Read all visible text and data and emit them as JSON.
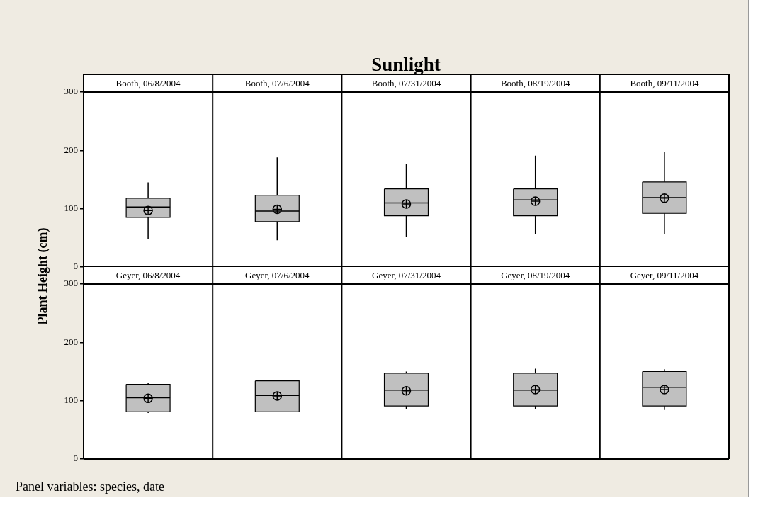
{
  "chart_data": [
    {
      "type": "box",
      "title": "Sunlight",
      "ylabel": "Plant Height (cm)",
      "categories": [
        "Booth, 06/8/2004",
        "Booth, 07/6/2004",
        "Booth, 07/31/2004",
        "Booth, 08/19/2004",
        "Booth, 09/11/2004"
      ],
      "ylim": [
        0,
        300
      ],
      "yticks": [
        0,
        100,
        200,
        300
      ],
      "series": [
        {
          "color": "#c0c0c0",
          "boxes": [
            {
              "low": 48,
              "q1": 85,
              "median": 103,
              "q3": 118,
              "high": 145,
              "mean": 97
            },
            {
              "low": 46,
              "q1": 78,
              "median": 96,
              "q3": 123,
              "high": 188,
              "mean": 99
            },
            {
              "low": 51,
              "q1": 88,
              "median": 110,
              "q3": 134,
              "high": 176,
              "mean": 108
            },
            {
              "low": 56,
              "q1": 88,
              "median": 115,
              "q3": 134,
              "high": 191,
              "mean": 113
            },
            {
              "low": 56,
              "q1": 92,
              "median": 119,
              "q3": 146,
              "high": 198,
              "mean": 118
            }
          ]
        }
      ]
    },
    {
      "type": "box",
      "annotations": [
        "Panel variables: species, date"
      ],
      "categories": [
        "Geyer, 06/8/2004",
        "Geyer, 07/6/2004",
        "Geyer, 07/31/2004",
        "Geyer, 08/19/2004",
        "Geyer, 09/11/2004"
      ],
      "ylim": [
        0,
        300
      ],
      "yticks": [
        0,
        100,
        200,
        300
      ],
      "series": [
        {
          "color": "#c0c0c0",
          "boxes": [
            {
              "low": 79,
              "q1": 81,
              "median": 105,
              "q3": 128,
              "high": 130,
              "mean": 104
            },
            {
              "low": 81,
              "q1": 81,
              "median": 109,
              "q3": 134,
              "high": 134,
              "mean": 108
            },
            {
              "low": 86,
              "q1": 91,
              "median": 118,
              "q3": 147,
              "high": 150,
              "mean": 117
            },
            {
              "low": 86,
              "q1": 91,
              "median": 118,
              "q3": 147,
              "high": 155,
              "mean": 119
            },
            {
              "low": 84,
              "q1": 91,
              "median": 123,
              "q3": 150,
              "high": 154,
              "mean": 119
            }
          ]
        }
      ]
    }
  ]
}
